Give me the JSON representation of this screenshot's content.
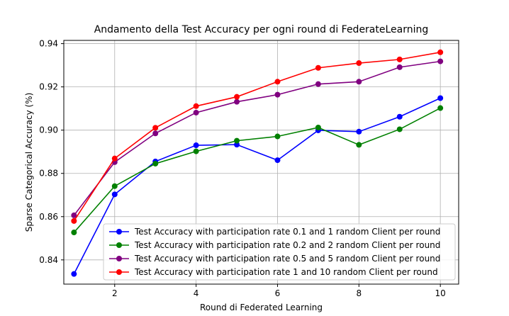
{
  "chart_data": {
    "type": "line",
    "title": "Andamento della Test Accuracy per ogni round di FederateLearning",
    "xlabel": "Round di Federated Learning",
    "ylabel": "Sparse Categorical Accuracy (%)",
    "xlim": [
      0.75,
      10.45
    ],
    "ylim": [
      0.8288,
      0.9415
    ],
    "xticks": [
      2,
      4,
      6,
      8,
      10
    ],
    "xtick_labels": [
      "2",
      "4",
      "6",
      "8",
      "10"
    ],
    "yticks": [
      0.84,
      0.86,
      0.88,
      0.9,
      0.92,
      0.94
    ],
    "ytick_labels": [
      "0.84",
      "0.86",
      "0.88",
      "0.90",
      "0.92",
      "0.94"
    ],
    "grid": true,
    "legend_position": "bottom-right",
    "x": [
      1,
      2,
      3,
      4,
      5,
      6,
      7,
      8,
      9,
      10
    ],
    "series": [
      {
        "name": "Test Accuracy with participation rate 0.1 and 1 random Client per round",
        "color": "#0000ff",
        "values": [
          0.8335,
          0.8703,
          0.8855,
          0.893,
          0.8933,
          0.8861,
          0.8999,
          0.8993,
          0.9062,
          0.9148
        ]
      },
      {
        "name": "Test Accuracy with participation rate 0.2 and 2 random Client per round",
        "color": "#008000",
        "values": [
          0.8527,
          0.8741,
          0.8845,
          0.8902,
          0.8951,
          0.8971,
          0.9012,
          0.8932,
          0.9004,
          0.9102
        ]
      },
      {
        "name": "Test Accuracy with participation rate 0.5 and 5 random Client per round",
        "color": "#800080",
        "values": [
          0.8606,
          0.8852,
          0.8985,
          0.9081,
          0.9131,
          0.9164,
          0.9213,
          0.9224,
          0.9291,
          0.9318
        ]
      },
      {
        "name": "Test Accuracy with participation rate 1 and 10 random Client per round",
        "color": "#ff0000",
        "values": [
          0.858,
          0.8869,
          0.9011,
          0.9111,
          0.9154,
          0.9224,
          0.9288,
          0.931,
          0.9327,
          0.936
        ]
      }
    ]
  }
}
